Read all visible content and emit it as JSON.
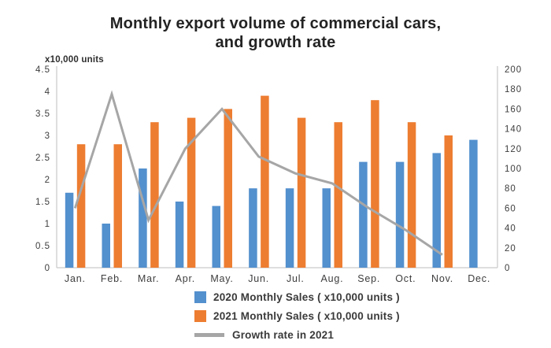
{
  "title": {
    "line1": "Monthly export volume of commercial cars,",
    "line2": "and growth rate"
  },
  "chart_data": {
    "type": "bar",
    "title": "Monthly export volume of commercial cars, and growth rate",
    "categories": [
      "Jan.",
      "Feb.",
      "Mar.",
      "Apr.",
      "May.",
      "Jun.",
      "Jul.",
      "Aug.",
      "Sep.",
      "Oct.",
      "Nov.",
      "Dec."
    ],
    "left_axis": {
      "title": "x10,000 units",
      "min": 0,
      "max": 4.5,
      "step": 0.5
    },
    "right_axis": {
      "min": 0,
      "max": 200,
      "step": 20
    },
    "grid": false,
    "legend_position": "bottom",
    "series": [
      {
        "name": "2020 Monthly Sales ( x10,000 units )",
        "type": "bar",
        "axis": "left",
        "color": "#5390CE",
        "values": [
          1.7,
          1.0,
          2.25,
          1.5,
          1.4,
          1.8,
          1.8,
          1.8,
          2.4,
          2.4,
          2.6,
          2.9
        ]
      },
      {
        "name": "2021 Monthly Sales ( x10,000 units )",
        "type": "bar",
        "axis": "left",
        "color": "#ED7D31",
        "values": [
          2.8,
          2.8,
          3.3,
          3.4,
          3.6,
          3.9,
          3.4,
          3.3,
          3.8,
          3.3,
          3.0,
          null
        ]
      },
      {
        "name": "Growth rate in 2021",
        "type": "line",
        "axis": "right",
        "color": "#A6A6A6",
        "values": [
          60,
          175,
          48,
          120,
          160,
          112,
          95,
          85,
          60,
          38,
          13,
          null
        ]
      }
    ],
    "colors": {
      "axis_line": "#C9C9C9",
      "tick_label": "#3D3D3D",
      "title_text": "#232323"
    }
  }
}
